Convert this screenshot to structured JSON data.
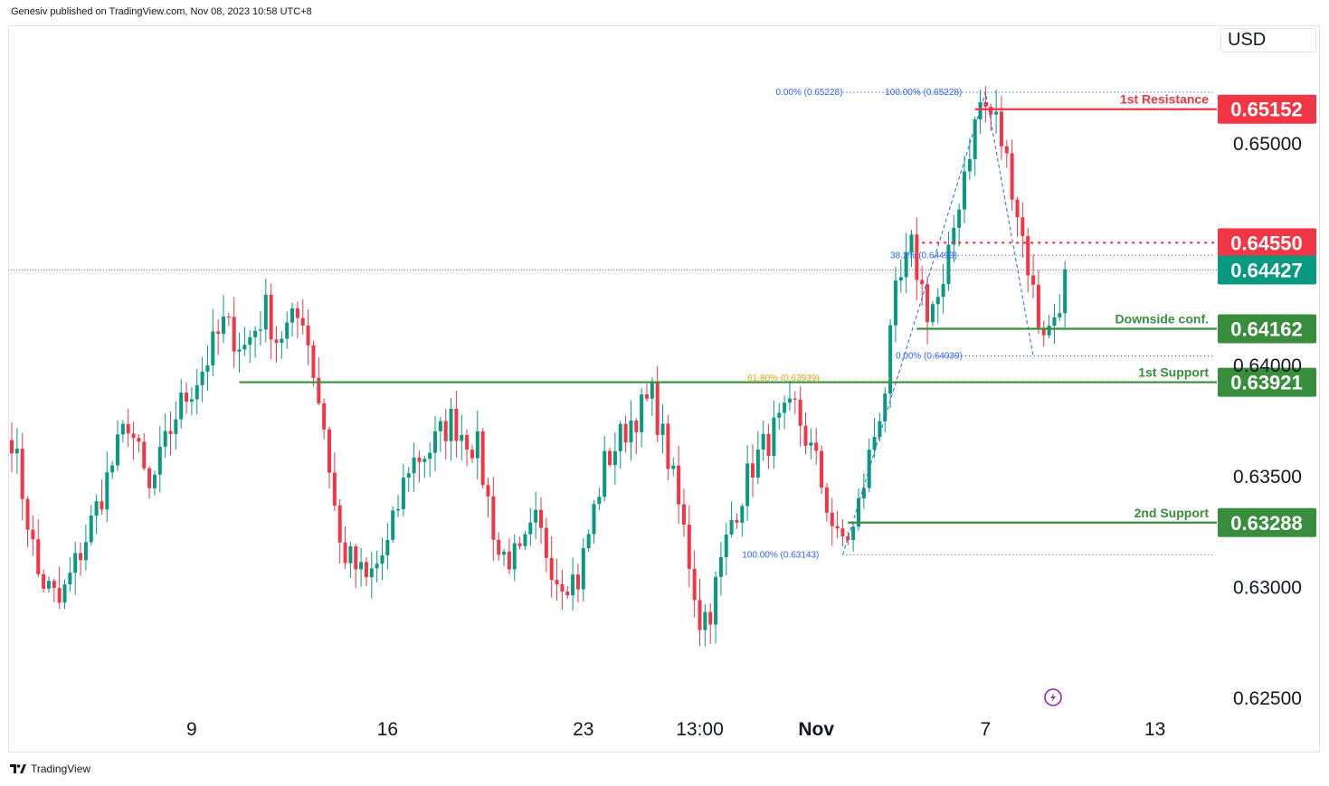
{
  "header": {
    "published": "Genesiv published on TradingView.com, Nov 08, 2023 10:58 UTC+8"
  },
  "currency": "USD",
  "footer": {
    "brand": "TradingView",
    "logo_icon": "tradingview-logo-icon"
  },
  "colors": {
    "up": "#089981",
    "down": "#f23645",
    "resistance": "#f23645",
    "support": "#388e3c",
    "fib": "#2962ff",
    "fib_golden": "#f7c948",
    "current": "#089981"
  },
  "chart_data": {
    "type": "candlestick",
    "symbol_currency": "USD",
    "y_ticks": [
      "0.65000",
      "0.64000",
      "0.63500",
      "0.63000",
      "0.62500"
    ],
    "y_tick_values": [
      0.65,
      0.64,
      0.635,
      0.63,
      0.625
    ],
    "x_ticks": [
      "9",
      "16",
      "23",
      "13:00",
      "Nov",
      "7",
      "13"
    ],
    "x_tick_bars": [
      34,
      71,
      108,
      130,
      152,
      184,
      216
    ],
    "ylim": [
      0.6243,
      0.6589
    ],
    "bars_visible": 227,
    "grid": false,
    "levels": [
      {
        "name": "1st Resistance",
        "price": 0.65152,
        "price_label": "0.65152",
        "color": "#f23645",
        "style": "solid",
        "from_bar": 182
      },
      {
        "name": "",
        "price": 0.6455,
        "price_label": "0.64550",
        "color": "#f23645",
        "style": "dotted",
        "from_bar": 172
      },
      {
        "name": "Downside conf.",
        "price": 0.64162,
        "price_label": "0.64162",
        "color": "#388e3c",
        "style": "solid",
        "from_bar": 171
      },
      {
        "name": "1st Support",
        "price": 0.63921,
        "price_label": "0.63921",
        "color": "#388e3c",
        "style": "solid",
        "from_bar": 43
      },
      {
        "name": "2nd Support",
        "price": 0.63288,
        "price_label": "0.63288",
        "color": "#388e3c",
        "style": "solid",
        "from_bar": 158
      }
    ],
    "current_price": {
      "price": 0.64427,
      "label": "0.64427"
    },
    "fib_labels": [
      {
        "text": "0.00% (0.65228)",
        "price": 0.65228,
        "bar": 157,
        "anchor": "end"
      },
      {
        "text": "100.00% (0.65228)",
        "price": 0.65228,
        "bar": 165,
        "anchor": "start"
      },
      {
        "text": "38.2% (0.64493)",
        "price": 0.64493,
        "bar": 166,
        "anchor": "start"
      },
      {
        "text": "0.00% (0.64039)",
        "price": 0.64039,
        "bar": 167,
        "anchor": "start"
      },
      {
        "text": "61.80% (0.63939)",
        "price": 0.63939,
        "bar": 139,
        "anchor": "start"
      },
      {
        "text": "100.00% (0.63143)",
        "price": 0.63143,
        "bar": 138,
        "anchor": "start"
      }
    ],
    "fib_lines": [
      {
        "price": 0.65228,
        "from_bar": 157,
        "to_bar": 227,
        "color": "#2962ff"
      },
      {
        "price": 0.64493,
        "from_bar": 174,
        "to_bar": 227,
        "color": "#2962ff"
      },
      {
        "price": 0.64039,
        "from_bar": 174,
        "to_bar": 227,
        "color": "#2962ff"
      },
      {
        "price": 0.63939,
        "from_bar": 139,
        "to_bar": 227,
        "color": "#f7c948"
      },
      {
        "price": 0.63143,
        "from_bar": 157,
        "to_bar": 227,
        "color": "#2962ff"
      }
    ],
    "fib_path": [
      [
        157,
        0.63143
      ],
      [
        184,
        0.65228
      ],
      [
        193,
        0.64039
      ]
    ],
    "waypoints": [
      [
        0,
        0.6368
      ],
      [
        5,
        0.6305
      ],
      [
        9,
        0.6292
      ],
      [
        14,
        0.6322
      ],
      [
        22,
        0.6375
      ],
      [
        26,
        0.6342
      ],
      [
        31,
        0.6378
      ],
      [
        36,
        0.6398
      ],
      [
        40,
        0.6418
      ],
      [
        44,
        0.6408
      ],
      [
        48,
        0.6425
      ],
      [
        50,
        0.6412
      ],
      [
        55,
        0.6423
      ],
      [
        59,
        0.6372
      ],
      [
        62,
        0.6318
      ],
      [
        67,
        0.6302
      ],
      [
        71,
        0.6318
      ],
      [
        75,
        0.6355
      ],
      [
        79,
        0.6362
      ],
      [
        83,
        0.6375
      ],
      [
        88,
        0.6362
      ],
      [
        92,
        0.6315
      ],
      [
        96,
        0.6312
      ],
      [
        99,
        0.6328
      ],
      [
        103,
        0.6305
      ],
      [
        107,
        0.6303
      ],
      [
        112,
        0.6355
      ],
      [
        117,
        0.6375
      ],
      [
        121,
        0.6385
      ],
      [
        124,
        0.6358
      ],
      [
        127,
        0.6325
      ],
      [
        130,
        0.6285
      ],
      [
        132,
        0.629
      ],
      [
        136,
        0.633
      ],
      [
        140,
        0.6355
      ],
      [
        144,
        0.637
      ],
      [
        148,
        0.638
      ],
      [
        152,
        0.6355
      ],
      [
        156,
        0.632
      ],
      [
        159,
        0.6325
      ],
      [
        162,
        0.6358
      ],
      [
        165,
        0.639
      ],
      [
        167,
        0.643
      ],
      [
        170,
        0.6452
      ],
      [
        173,
        0.6425
      ],
      [
        176,
        0.6432
      ],
      [
        178,
        0.6462
      ],
      [
        180,
        0.6488
      ],
      [
        183,
        0.6518
      ],
      [
        186,
        0.651
      ],
      [
        189,
        0.6482
      ],
      [
        192,
        0.6445
      ],
      [
        194,
        0.642
      ],
      [
        196,
        0.6415
      ],
      [
        198,
        0.643
      ],
      [
        199,
        0.6443
      ]
    ]
  }
}
